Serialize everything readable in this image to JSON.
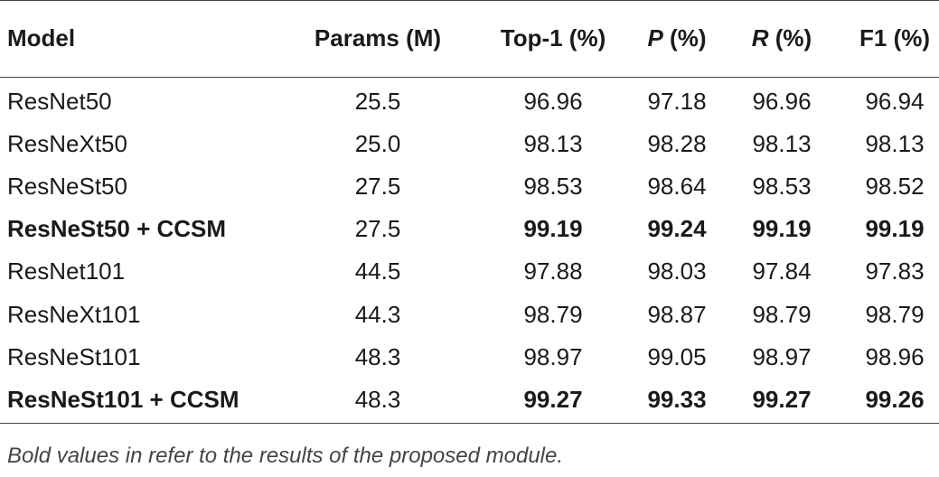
{
  "table": {
    "header": [
      "Model",
      "Params (M)",
      "Top-1 (%)",
      "P (%)",
      "R (%)",
      "F1 (%)"
    ],
    "rows": [
      {
        "cells": [
          "ResNet50",
          "25.5",
          "96.96",
          "97.18",
          "96.96",
          "96.94"
        ],
        "bold": false
      },
      {
        "cells": [
          "ResNeXt50",
          "25.0",
          "98.13",
          "98.28",
          "98.13",
          "98.13"
        ],
        "bold": false
      },
      {
        "cells": [
          "ResNeSt50",
          "27.5",
          "98.53",
          "98.64",
          "98.53",
          "98.52"
        ],
        "bold": false
      },
      {
        "cells": [
          "ResNeSt50 + CCSM",
          "27.5",
          "99.19",
          "99.24",
          "99.19",
          "99.19"
        ],
        "bold": true
      },
      {
        "cells": [
          "ResNet101",
          "44.5",
          "97.88",
          "98.03",
          "97.84",
          "97.83"
        ],
        "bold": false
      },
      {
        "cells": [
          "ResNeXt101",
          "44.3",
          "98.79",
          "98.87",
          "98.79",
          "98.79"
        ],
        "bold": false
      },
      {
        "cells": [
          "ResNeSt101",
          "48.3",
          "98.97",
          "99.05",
          "98.97",
          "98.96"
        ],
        "bold": false
      },
      {
        "cells": [
          "ResNeSt101 + CCSM",
          "48.3",
          "99.27",
          "99.33",
          "99.27",
          "99.26"
        ],
        "bold": true
      }
    ],
    "footnote": "Bold values in refer to the results of the proposed module."
  }
}
